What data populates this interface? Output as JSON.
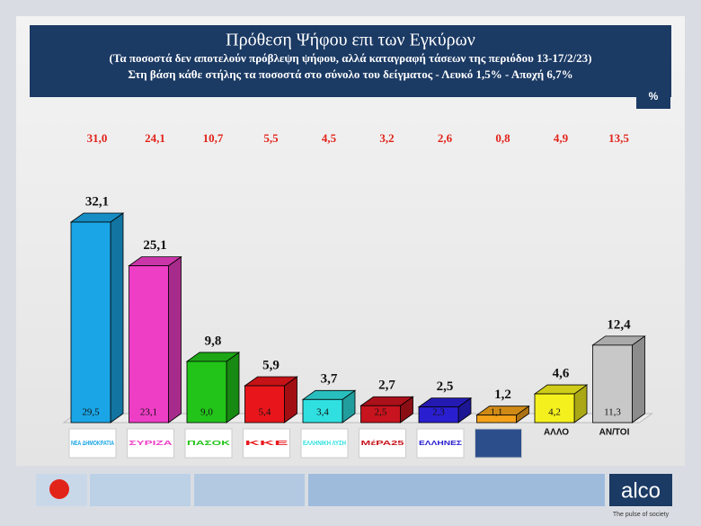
{
  "chart_data": {
    "type": "bar3d",
    "title": "Πρόθεση Ψήφου επι των Εγκύρων",
    "subtitle": "(Τα ποσοστά δεν αποτελούν πρόβλεψη ψήφου, αλλά καταγραφή τάσεων της περιόδου  13-17/2/23)",
    "note": "Στη βάση κάθε στήλης τα ποσοστά στο σύνολο του δείγματος - Λευκό 1,5% - Αποχή 6,7%",
    "unit_badge": "%",
    "categories": [
      "ΝΕΑ ΔΗΜΟΚΡΑΤΙΑ",
      "ΣΥΡΙΖΑ",
      "ΠΑΣΟΚ",
      "ΚΚΕ",
      "ΕΛΛΗΝΙΚΗ ΛΥΣΗ",
      "ΜέΡΑ25",
      "ΕΛΛΗΝΕΣ",
      null,
      "ΑΛΛΟ",
      "ΑΝ/ΤΟΙ"
    ],
    "colors": [
      "#1aa6e6",
      "#ee3ec6",
      "#22c41a",
      "#e8161b",
      "#30e0e0",
      "#c8141e",
      "#2a1fd0",
      "#f4a21a",
      "#f4f01e",
      "#c8c8c8"
    ],
    "values": [
      32.1,
      25.1,
      9.8,
      5.9,
      3.7,
      2.7,
      2.5,
      1.2,
      4.6,
      12.4
    ],
    "value_labels": [
      "32,1",
      "25,1",
      "9,8",
      "5,9",
      "3,7",
      "2,7",
      "2,5",
      "1,2",
      "4,6",
      "12,4"
    ],
    "base_values": [
      29.5,
      23.1,
      9.0,
      5.4,
      3.4,
      2.5,
      2.3,
      1.1,
      4.2,
      11.3
    ],
    "base_value_labels": [
      "29,5",
      "23,1",
      "9,0",
      "5,4",
      "3,4",
      "2,5",
      "2,3",
      "1,1",
      "4,2",
      "11,3"
    ],
    "previous_values": [
      31.0,
      24.1,
      10.7,
      5.5,
      4.5,
      3.2,
      2.6,
      0.8,
      4.9,
      13.5
    ],
    "previous_value_labels": [
      "31,0",
      "24,1",
      "10,7",
      "5,5",
      "4,5",
      "3,2",
      "2,6",
      "0,8",
      "4,9",
      "13,5"
    ],
    "footer_logo": "alco",
    "footer_tagline": "The pulse of society"
  }
}
